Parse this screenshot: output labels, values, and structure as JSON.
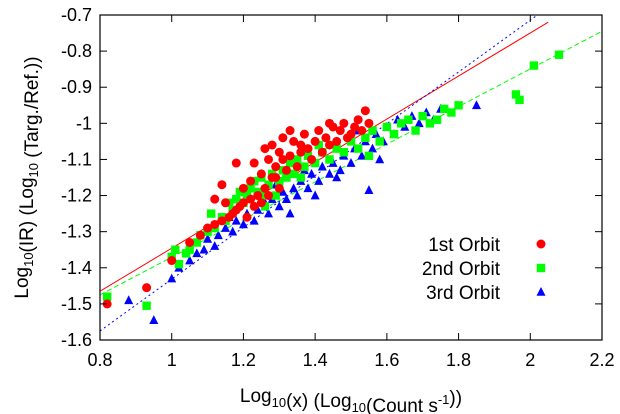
{
  "chart_data": {
    "type": "scatter",
    "xlabel": "Log10(x) (Log10(Count s-1))",
    "ylabel": "Log10(IR) (Log10 (Targ./Ref.))",
    "xlim": [
      0.8,
      2.2
    ],
    "ylim": [
      -1.6,
      -0.7
    ],
    "x_ticks": [
      "0.8",
      "1",
      "1.2",
      "1.4",
      "1.6",
      "1.8",
      "2",
      "2.2"
    ],
    "y_ticks": [
      "-1.6",
      "-1.5",
      "-1.4",
      "-1.3",
      "-1.2",
      "-1.1",
      "-1",
      "-0.9",
      "-0.8",
      "-0.7"
    ],
    "grid": false,
    "legend_position": "bottom-right",
    "series": [
      {
        "name": "1st Orbit",
        "color": "#ff0000",
        "marker": "circle",
        "fit": {
          "style": "solid",
          "x": [
            0.8,
            2.05
          ],
          "y": [
            -1.465,
            -0.72
          ]
        },
        "points": [
          [
            0.82,
            -1.5
          ],
          [
            0.93,
            -1.455
          ],
          [
            1.0,
            -1.38
          ],
          [
            1.05,
            -1.33
          ],
          [
            1.08,
            -1.31
          ],
          [
            1.1,
            -1.29
          ],
          [
            1.12,
            -1.28
          ],
          [
            1.14,
            -1.27
          ],
          [
            1.15,
            -1.22
          ],
          [
            1.16,
            -1.26
          ],
          [
            1.17,
            -1.25
          ],
          [
            1.18,
            -1.24
          ],
          [
            1.19,
            -1.23
          ],
          [
            1.2,
            -1.22
          ],
          [
            1.2,
            -1.18
          ],
          [
            1.21,
            -1.26
          ],
          [
            1.22,
            -1.21
          ],
          [
            1.22,
            -1.16
          ],
          [
            1.23,
            -1.23
          ],
          [
            1.24,
            -1.2
          ],
          [
            1.25,
            -1.14
          ],
          [
            1.25,
            -1.22
          ],
          [
            1.26,
            -1.18
          ],
          [
            1.27,
            -1.1
          ],
          [
            1.27,
            -1.2
          ],
          [
            1.28,
            -1.15
          ],
          [
            1.28,
            -1.06
          ],
          [
            1.29,
            -1.12
          ],
          [
            1.3,
            -1.08
          ],
          [
            1.3,
            -1.18
          ],
          [
            1.31,
            -1.1
          ],
          [
            1.31,
            -1.04
          ],
          [
            1.32,
            -1.13
          ],
          [
            1.33,
            -1.09
          ],
          [
            1.34,
            -1.05
          ],
          [
            1.35,
            -1.12
          ],
          [
            1.36,
            -1.08
          ],
          [
            1.37,
            -1.03
          ],
          [
            1.38,
            -1.07
          ],
          [
            1.39,
            -1.1
          ],
          [
            1.4,
            -1.05
          ],
          [
            1.41,
            -1.02
          ],
          [
            1.42,
            -1.08
          ],
          [
            1.43,
            -1.04
          ],
          [
            1.44,
            -1.06
          ],
          [
            1.45,
            -1.01
          ],
          [
            1.46,
            -1.05
          ],
          [
            1.47,
            -1.02
          ],
          [
            1.48,
            -1.0
          ],
          [
            1.49,
            -1.04
          ],
          [
            1.5,
            -1.03
          ],
          [
            1.51,
            -1.01
          ],
          [
            1.52,
            -0.99
          ],
          [
            1.53,
            -1.02
          ],
          [
            1.54,
            -0.965
          ],
          [
            1.55,
            -1.0
          ],
          [
            1.12,
            -1.21
          ],
          [
            1.14,
            -1.17
          ],
          [
            1.18,
            -1.11
          ],
          [
            1.23,
            -1.11
          ],
          [
            1.26,
            -1.07
          ],
          [
            1.29,
            -1.15
          ],
          [
            1.33,
            -1.02
          ],
          [
            1.36,
            -1.06
          ],
          [
            1.44,
            -1.0
          ]
        ]
      },
      {
        "name": "2nd Orbit",
        "color": "#00ff00",
        "marker": "square",
        "fit": {
          "style": "dashed",
          "x": [
            0.8,
            2.2
          ],
          "y": [
            -1.475,
            -0.745
          ]
        },
        "points": [
          [
            0.82,
            -1.48
          ],
          [
            0.93,
            -1.505
          ],
          [
            1.0,
            -1.37
          ],
          [
            1.01,
            -1.35
          ],
          [
            1.02,
            -1.39
          ],
          [
            1.04,
            -1.36
          ],
          [
            1.05,
            -1.35
          ],
          [
            1.07,
            -1.33
          ],
          [
            1.08,
            -1.31
          ],
          [
            1.1,
            -1.3
          ],
          [
            1.12,
            -1.29
          ],
          [
            1.14,
            -1.26
          ],
          [
            1.15,
            -1.27
          ],
          [
            1.16,
            -1.22
          ],
          [
            1.17,
            -1.24
          ],
          [
            1.18,
            -1.21
          ],
          [
            1.19,
            -1.19
          ],
          [
            1.2,
            -1.22
          ],
          [
            1.21,
            -1.2
          ],
          [
            1.22,
            -1.18
          ],
          [
            1.23,
            -1.16
          ],
          [
            1.24,
            -1.19
          ],
          [
            1.25,
            -1.2
          ],
          [
            1.26,
            -1.23
          ],
          [
            1.27,
            -1.17
          ],
          [
            1.28,
            -1.14
          ],
          [
            1.29,
            -1.2
          ],
          [
            1.3,
            -1.16
          ],
          [
            1.31,
            -1.13
          ],
          [
            1.32,
            -1.15
          ],
          [
            1.33,
            -1.11
          ],
          [
            1.34,
            -1.14
          ],
          [
            1.35,
            -1.1
          ],
          [
            1.36,
            -1.15
          ],
          [
            1.37,
            -1.12
          ],
          [
            1.38,
            -1.09
          ],
          [
            1.4,
            -1.11
          ],
          [
            1.42,
            -1.08
          ],
          [
            1.44,
            -1.1
          ],
          [
            1.46,
            -1.07
          ],
          [
            1.48,
            -1.08
          ],
          [
            1.5,
            -1.05
          ],
          [
            1.52,
            -1.07
          ],
          [
            1.54,
            -1.04
          ],
          [
            1.56,
            -1.02
          ],
          [
            1.58,
            -1.05
          ],
          [
            1.6,
            -1.01
          ],
          [
            1.62,
            -1.03
          ],
          [
            1.64,
            -1.0
          ],
          [
            1.66,
            -0.99
          ],
          [
            1.68,
            -1.02
          ],
          [
            1.7,
            -0.98
          ],
          [
            1.72,
            -1.0
          ],
          [
            1.74,
            -0.99
          ],
          [
            1.76,
            -0.96
          ],
          [
            1.78,
            -0.97
          ],
          [
            1.8,
            -0.95
          ],
          [
            1.96,
            -0.92
          ],
          [
            1.97,
            -0.935
          ],
          [
            2.01,
            -0.84
          ],
          [
            2.08,
            -0.81
          ],
          [
            1.11,
            -1.25
          ],
          [
            1.25,
            -1.15
          ],
          [
            1.41,
            -1.06
          ],
          [
            1.55,
            -1.09
          ]
        ]
      },
      {
        "name": "3rd Orbit",
        "color": "#0000ff",
        "marker": "triangle",
        "fit": {
          "style": "dotted",
          "x": [
            0.8,
            2.02
          ],
          "y": [
            -1.575,
            -0.7
          ]
        },
        "points": [
          [
            0.88,
            -1.49
          ],
          [
            0.95,
            -1.545
          ],
          [
            1.0,
            -1.43
          ],
          [
            1.02,
            -1.4
          ],
          [
            1.05,
            -1.38
          ],
          [
            1.07,
            -1.36
          ],
          [
            1.09,
            -1.35
          ],
          [
            1.1,
            -1.32
          ],
          [
            1.12,
            -1.34
          ],
          [
            1.13,
            -1.31
          ],
          [
            1.15,
            -1.29
          ],
          [
            1.17,
            -1.3
          ],
          [
            1.18,
            -1.27
          ],
          [
            1.2,
            -1.28
          ],
          [
            1.21,
            -1.25
          ],
          [
            1.23,
            -1.27
          ],
          [
            1.24,
            -1.24
          ],
          [
            1.26,
            -1.22
          ],
          [
            1.27,
            -1.25
          ],
          [
            1.28,
            -1.21
          ],
          [
            1.3,
            -1.23
          ],
          [
            1.31,
            -1.19
          ],
          [
            1.32,
            -1.21
          ],
          [
            1.34,
            -1.18
          ],
          [
            1.35,
            -1.2
          ],
          [
            1.36,
            -1.16
          ],
          [
            1.38,
            -1.18
          ],
          [
            1.39,
            -1.14
          ],
          [
            1.41,
            -1.16
          ],
          [
            1.42,
            -1.12
          ],
          [
            1.44,
            -1.14
          ],
          [
            1.45,
            -1.11
          ],
          [
            1.47,
            -1.13
          ],
          [
            1.48,
            -1.09
          ],
          [
            1.5,
            -1.11
          ],
          [
            1.51,
            -1.07
          ],
          [
            1.53,
            -1.09
          ],
          [
            1.54,
            -1.05
          ],
          [
            1.56,
            -1.07
          ],
          [
            1.57,
            -1.03
          ],
          [
            1.59,
            -1.05
          ],
          [
            1.6,
            -1.01
          ],
          [
            1.62,
            -1.03
          ],
          [
            1.63,
            -0.99
          ],
          [
            1.65,
            -1.01
          ],
          [
            1.67,
            -0.98
          ],
          [
            1.69,
            -1.0
          ],
          [
            1.71,
            -0.97
          ],
          [
            1.73,
            -0.99
          ],
          [
            1.75,
            -0.96
          ],
          [
            1.85,
            -0.95
          ],
          [
            1.55,
            -1.185
          ],
          [
            1.33,
            -1.25
          ],
          [
            1.46,
            -1.15
          ],
          [
            1.58,
            -1.1
          ],
          [
            1.4,
            -1.2
          ],
          [
            1.29,
            -1.17
          ],
          [
            1.16,
            -1.26
          ],
          [
            1.37,
            -1.13
          ],
          [
            1.52,
            -1.02
          ]
        ]
      }
    ]
  }
}
